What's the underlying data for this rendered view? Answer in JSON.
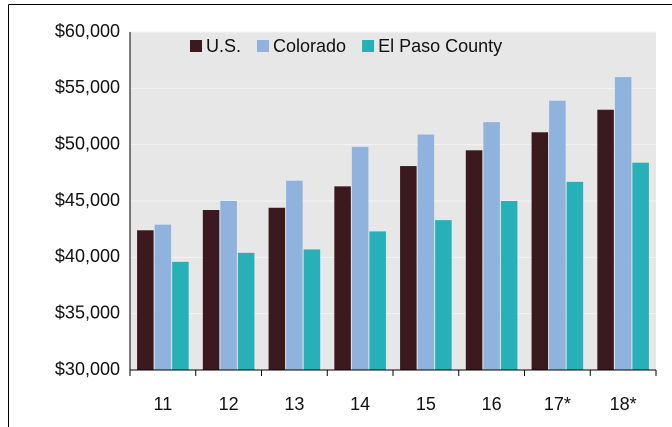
{
  "chart_data": {
    "type": "bar",
    "categories": [
      "11",
      "12",
      "13",
      "14",
      "15",
      "16",
      "17*",
      "18*"
    ],
    "series": [
      {
        "name": "U.S.",
        "color": "#3a1a1f",
        "values": [
          42400,
          44200,
          44400,
          46300,
          48100,
          49500,
          51100,
          53100
        ]
      },
      {
        "name": "Colorado",
        "color": "#8fb3dc",
        "values": [
          42900,
          45000,
          46800,
          49800,
          50900,
          52000,
          53900,
          56000
        ]
      },
      {
        "name": "El Paso County",
        "color": "#27b0b8",
        "values": [
          39600,
          40400,
          40700,
          42300,
          43300,
          45000,
          46700,
          48400
        ]
      }
    ],
    "ylim": [
      30000,
      60000
    ],
    "yticks": [
      {
        "value": 30000,
        "label": "$30,000"
      },
      {
        "value": 35000,
        "label": "$35,000"
      },
      {
        "value": 40000,
        "label": "$40,000"
      },
      {
        "value": 45000,
        "label": "$45,000"
      },
      {
        "value": 50000,
        "label": "$50,000"
      },
      {
        "value": 55000,
        "label": "$55,000"
      },
      {
        "value": 60000,
        "label": "$60,000"
      }
    ],
    "grid": true,
    "legend": "top"
  }
}
